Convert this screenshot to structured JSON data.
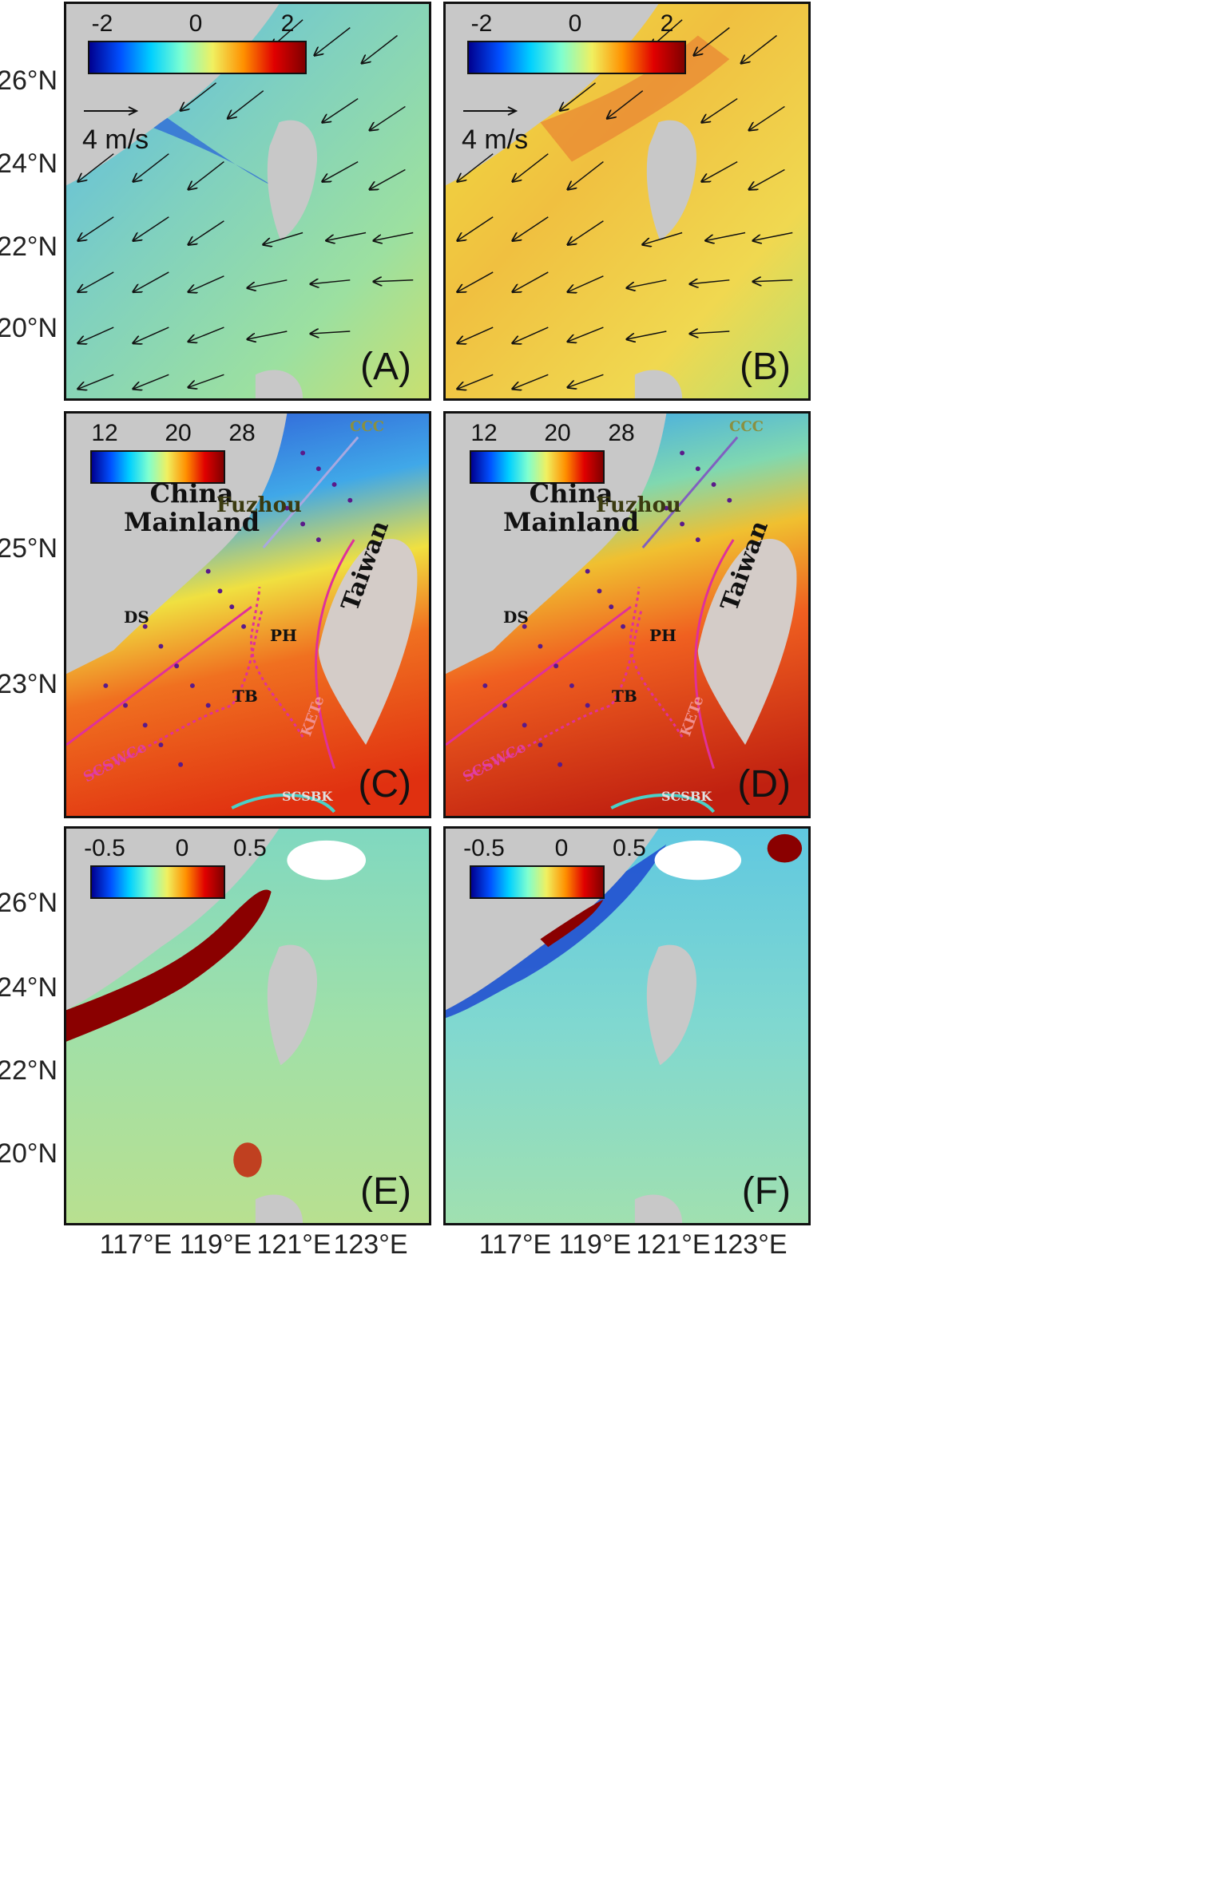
{
  "latitude_labels_top": [
    "26°N",
    "24°N",
    "22°N",
    "20°N"
  ],
  "latitude_labels_mid": [
    "25°N",
    "23°N"
  ],
  "latitude_labels_bottom": [
    "26°N",
    "24°N",
    "22°N",
    "20°N"
  ],
  "longitude_labels": [
    "117°E",
    "119°E",
    "121°E",
    "123°E"
  ],
  "panels": {
    "A": {
      "label": "(A)",
      "colorbar": {
        "ticks": [
          "-2",
          "0",
          "2"
        ]
      },
      "scale_label": "4 m/s"
    },
    "B": {
      "label": "(B)",
      "colorbar": {
        "ticks": [
          "-2",
          "0",
          "2"
        ]
      },
      "scale_label": "4 m/s"
    },
    "C": {
      "label": "(C)",
      "colorbar": {
        "ticks": [
          "12",
          "20",
          "28"
        ]
      }
    },
    "D": {
      "label": "(D)",
      "colorbar": {
        "ticks": [
          "12",
          "20",
          "28"
        ]
      }
    },
    "E": {
      "label": "(E)",
      "colorbar": {
        "ticks": [
          "-0.5",
          "0",
          "0.5"
        ]
      }
    },
    "F": {
      "label": "(F)",
      "colorbar": {
        "ticks": [
          "-0.5",
          "0",
          "0.5"
        ]
      }
    }
  },
  "map_labels": {
    "china_mainland_line1": "China",
    "china_mainland_line2": "Mainland",
    "fuzhou": "Fuzhou",
    "taiwan": "Taiwan",
    "ccc": "CCC",
    "ds": "DS",
    "ph": "PH",
    "tb": "TB",
    "kete": "KETe",
    "scswce": "SCSWCe",
    "scsbk": "SCSBK"
  },
  "colors": {
    "land": "#c8c8c8",
    "cool": "#3a8fe0",
    "neutral": "#7fd6b0",
    "warm": "#f7d54a",
    "hot": "#e8401a",
    "magenta": "#e0309a",
    "cyan": "#4ad0c8"
  }
}
